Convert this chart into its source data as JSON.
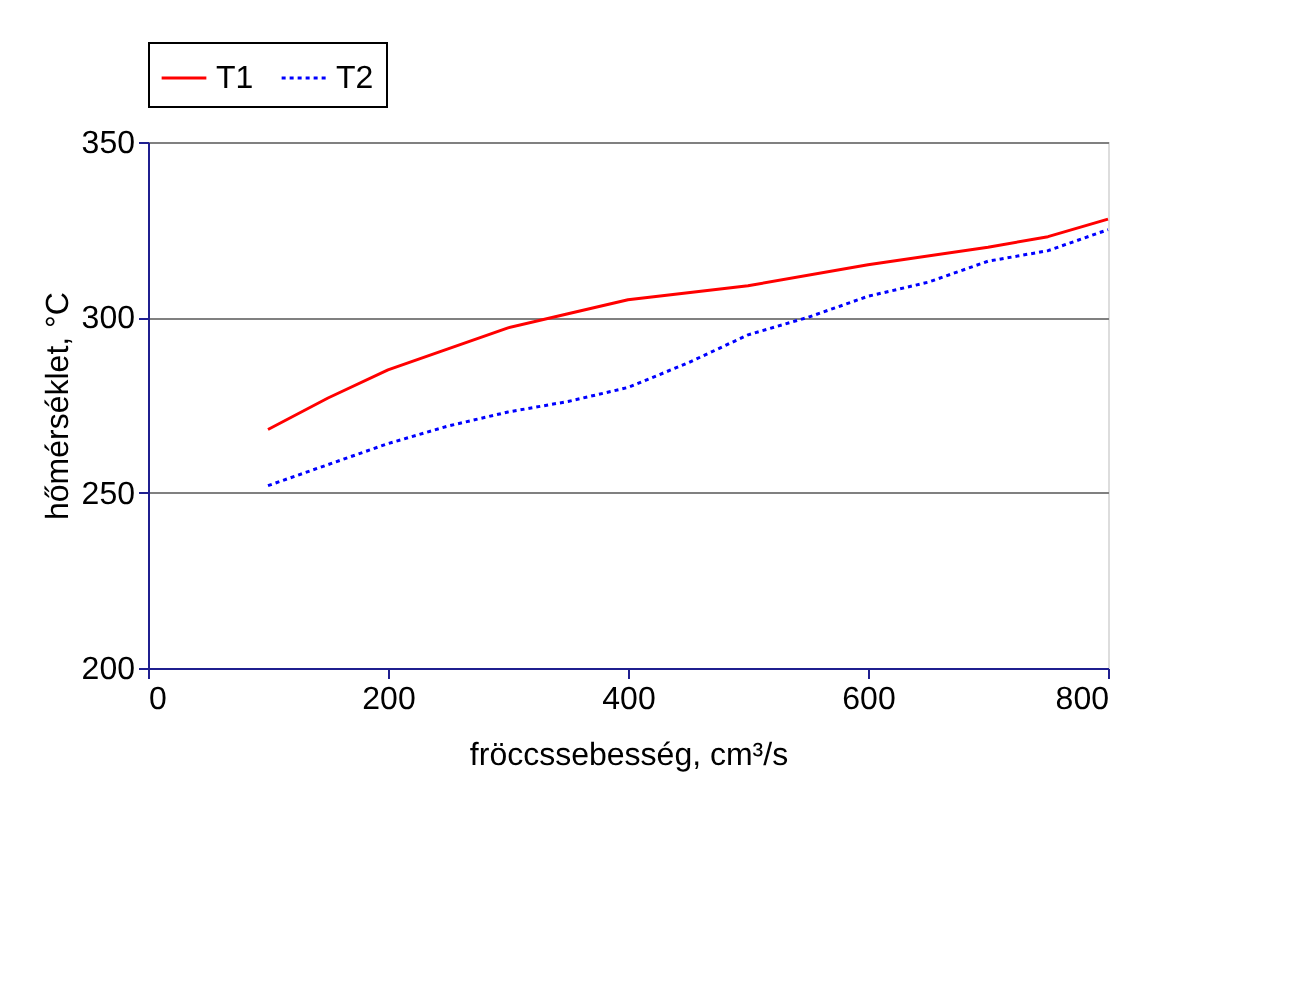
{
  "chart_data": {
    "type": "line",
    "xlabel": "fröccssebesség, cm³/s",
    "ylabel": "hőmérséklet, °C",
    "xlim": [
      0,
      800
    ],
    "xticks": [
      0,
      200,
      400,
      600,
      800
    ],
    "ylim": [
      200,
      350
    ],
    "yticks": [
      200,
      250,
      300,
      350
    ],
    "grid": "y",
    "legend": "top",
    "marker": "none",
    "series": [
      {
        "name": "T1",
        "color": "#ff0000",
        "line_style": "solid",
        "x": [
          100,
          150,
          200,
          250,
          300,
          350,
          400,
          500,
          600,
          700,
          750,
          800
        ],
        "values": [
          268,
          277,
          285,
          291,
          297,
          301,
          305,
          309,
          315,
          320,
          323,
          328
        ]
      },
      {
        "name": "T2",
        "color": "#0000ff",
        "line_style": "dotted",
        "x": [
          100,
          150,
          200,
          250,
          300,
          350,
          400,
          450,
          500,
          550,
          600,
          650,
          700,
          750,
          800
        ],
        "values": [
          252,
          258,
          264,
          269,
          273,
          276,
          280,
          287,
          295,
          300,
          306,
          310,
          316,
          319,
          325
        ]
      }
    ]
  }
}
